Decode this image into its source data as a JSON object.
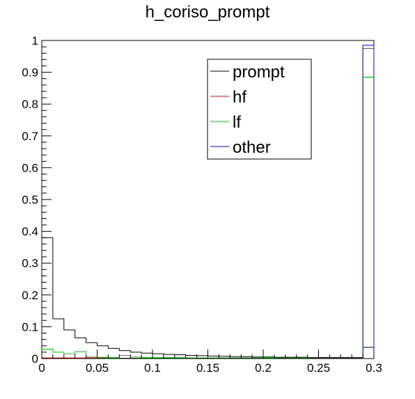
{
  "chart_data": {
    "type": "histogram",
    "title": "h_coriso_prompt",
    "xlabel": "",
    "ylabel": "",
    "xlim": [
      0,
      0.3
    ],
    "ylim": [
      0,
      1
    ],
    "bin_width": 0.01,
    "grid": false,
    "legend_position": "top-right",
    "x_ticks": [
      "0",
      "0.05",
      "0.1",
      "0.15",
      "0.2",
      "0.25",
      "0.3"
    ],
    "x_tick_values": [
      0,
      0.05,
      0.1,
      0.15,
      0.2,
      0.25,
      0.3
    ],
    "y_ticks": [
      "0",
      "0.1",
      "0.2",
      "0.3",
      "0.4",
      "0.5",
      "0.6",
      "0.7",
      "0.8",
      "0.9",
      "1"
    ],
    "y_tick_values": [
      0,
      0.1,
      0.2,
      0.3,
      0.4,
      0.5,
      0.6,
      0.7,
      0.8,
      0.9,
      1
    ],
    "series": [
      {
        "name": "prompt",
        "color": "#000000",
        "values": [
          0.38,
          0.125,
          0.09,
          0.065,
          0.05,
          0.04,
          0.032,
          0.025,
          0.02,
          0.017,
          0.015,
          0.013,
          0.012,
          0.01,
          0.009,
          0.008,
          0.007,
          0.006,
          0.006,
          0.005,
          0.005,
          0.004,
          0.004,
          0.004,
          0.003,
          0.003,
          0.003,
          0.003,
          0.003,
          0.035
        ]
      },
      {
        "name": "hf",
        "color": "#ff0000",
        "values": [
          0.002,
          0.002,
          0.002,
          0.002,
          0.002,
          0.002,
          0.002,
          0.001,
          0.001,
          0.001,
          0.001,
          0.001,
          0.001,
          0.001,
          0.001,
          0.001,
          0.001,
          0.001,
          0.001,
          0.001,
          0.001,
          0.001,
          0.001,
          0.001,
          0.001,
          0.001,
          0.001,
          0.001,
          0.001,
          0.975
        ]
      },
      {
        "name": "lf",
        "color": "#00cc00",
        "values": [
          0.03,
          0.02,
          0.015,
          0.022,
          0.005,
          0.004,
          0.003,
          0.01,
          0.005,
          0.003,
          0.003,
          0.003,
          0.004,
          0.002,
          0.002,
          0.002,
          0.002,
          0.002,
          0.002,
          0.002,
          0.003,
          0.002,
          0.002,
          0.002,
          0.001,
          0.001,
          0.001,
          0.001,
          0.001,
          0.885
        ]
      },
      {
        "name": "other",
        "color": "#0000ff",
        "values": [
          0.001,
          0.001,
          0.001,
          0.001,
          0.001,
          0.001,
          0.001,
          0.001,
          0.001,
          0.001,
          0.001,
          0.001,
          0.001,
          0.001,
          0.001,
          0.001,
          0.001,
          0.001,
          0.001,
          0.001,
          0.001,
          0.001,
          0.001,
          0.001,
          0.001,
          0.001,
          0.001,
          0.001,
          0.001,
          0.985
        ]
      }
    ]
  }
}
